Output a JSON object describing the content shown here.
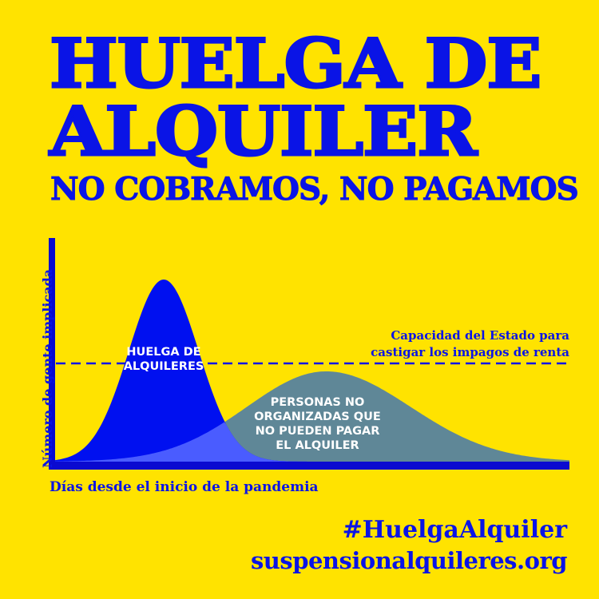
{
  "poster": {
    "title_line1": "HUELGA DE",
    "title_line2": "ALQUILER",
    "subtitle": "NO COBRAMOS, NO PAGAMOS",
    "hashtag": "#HuelgaAlquiler",
    "website": "suspensionalquileres.org"
  },
  "diagram": {
    "y_axis_label": "Número de gente implicada",
    "x_axis_label": "Días desde el inicio de la pandemia",
    "threshold_label_line1": "Capacidad del Estado para",
    "threshold_label_line2": "castigar los impagos de renta",
    "curve_strike_label_line1": "HUELGA DE",
    "curve_strike_label_line2": "ALQUILERES",
    "curve_unorganized_label_lines": [
      "PERSONAS NO",
      "ORGANIZADAS QUE",
      "NO PUEDEN PAGAR",
      "EL ALQUILER"
    ]
  },
  "colors": {
    "background": "#ffe300",
    "brand_blue": "#0a14e6",
    "strike_curve": "#0010f0",
    "unorganized_curve": "#5f8797",
    "overlap": "#4a5cff",
    "axis": "#0a0ad0"
  }
}
